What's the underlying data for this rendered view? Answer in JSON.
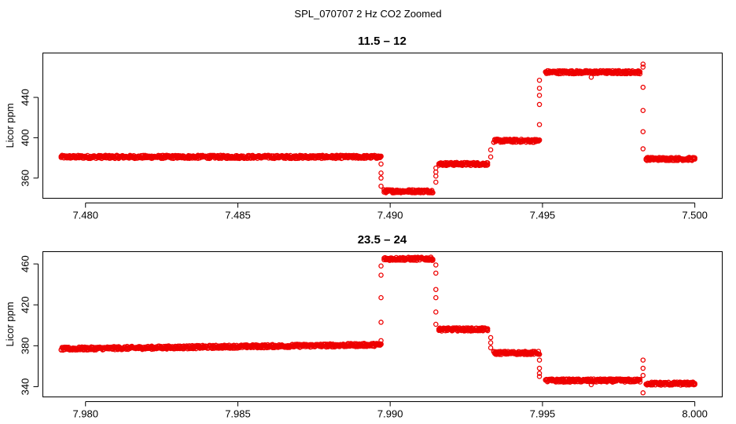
{
  "figure": {
    "title": "SPL_070707  2 Hz CO2 Zoomed"
  },
  "colors": {
    "points": "#ee0000",
    "axis": "#000000",
    "background": "#ffffff"
  },
  "chart_data": [
    {
      "type": "scatter",
      "title": "11.5 – 12",
      "xlabel": "",
      "ylabel": "Licor ppm",
      "xlim": [
        7.4786,
        7.5009
      ],
      "ylim": [
        340,
        484
      ],
      "xticks": [
        7.48,
        7.485,
        7.49,
        7.495,
        7.5
      ],
      "xtick_labels": [
        "7.480",
        "7.485",
        "7.490",
        "7.495",
        "7.500"
      ],
      "yticks": [
        360,
        400,
        440
      ],
      "ytick_labels": [
        "360",
        "400",
        "440"
      ],
      "series": [
        {
          "name": "CO2",
          "segments": [
            {
              "x": [
                7.4792,
                7.4897
              ],
              "y": 381
            },
            {
              "x": [
                7.4898,
                7.4914
              ],
              "y": 347
            },
            {
              "x": [
                7.4916,
                7.4932
              ],
              "y": 374
            },
            {
              "x": [
                7.4934,
                7.4949
              ],
              "y": 397
            },
            {
              "x": [
                7.4951,
                7.4982
              ],
              "y": 465
            },
            {
              "x": [
                7.4984,
                7.5
              ],
              "y": 379
            }
          ],
          "transitions": [
            {
              "x": 7.4897,
              "y": [
                374,
                365,
                360,
                352
              ]
            },
            {
              "x": 7.4915,
              "y": [
                356,
                362,
                366,
                370
              ]
            },
            {
              "x": 7.4933,
              "y": [
                381,
                388
              ]
            },
            {
              "x": 7.4949,
              "y": [
                413,
                433,
                442,
                449,
                457
              ]
            },
            {
              "x": 7.4983,
              "y": [
                470,
                450,
                427,
                406,
                389
              ]
            }
          ],
          "outliers": [
            {
              "x": 7.4966,
              "y": 460
            },
            {
              "x": 7.4983,
              "y": 473
            }
          ]
        }
      ]
    },
    {
      "type": "scatter",
      "title": "23.5 – 24",
      "xlabel": "",
      "ylabel": "Licor ppm",
      "xlim": [
        7.9786,
        8.0009
      ],
      "ylim": [
        330,
        472
      ],
      "xticks": [
        7.98,
        7.985,
        7.99,
        7.995,
        8.0
      ],
      "xtick_labels": [
        "7.980",
        "7.985",
        "7.990",
        "7.995",
        "8.000"
      ],
      "yticks": [
        340,
        380,
        420,
        460
      ],
      "ytick_labels": [
        "340",
        "380",
        "420",
        "460"
      ],
      "series": [
        {
          "name": "CO2",
          "segments": [
            {
              "x": [
                7.9792,
                7.9897
              ],
              "y": 377,
              "y_end": 381
            },
            {
              "x": [
                7.9898,
                7.9914
              ],
              "y": 465
            },
            {
              "x": [
                7.9916,
                7.9932
              ],
              "y": 396
            },
            {
              "x": [
                7.9934,
                7.9949
              ],
              "y": 373
            },
            {
              "x": [
                7.9951,
                7.9982
              ],
              "y": 346
            },
            {
              "x": [
                7.9984,
                8.0
              ],
              "y": 343
            }
          ],
          "transitions": [
            {
              "x": 7.9897,
              "y": [
                385,
                403,
                427,
                449,
                458
              ]
            },
            {
              "x": 7.9915,
              "y": [
                459,
                451,
                435,
                427,
                413,
                401
              ]
            },
            {
              "x": 7.9933,
              "y": [
                388,
                383,
                378
              ]
            },
            {
              "x": 7.9949,
              "y": [
                366,
                358,
                353,
                350
              ]
            },
            {
              "x": 7.9983,
              "y": [
                366,
                358,
                351
              ]
            }
          ],
          "outliers": [
            {
              "x": 7.9966,
              "y": 342
            },
            {
              "x": 7.9983,
              "y": 334
            }
          ]
        }
      ]
    }
  ]
}
